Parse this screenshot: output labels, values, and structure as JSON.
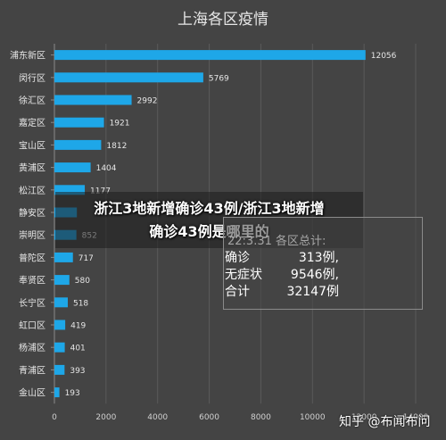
{
  "chart_data": {
    "type": "bar",
    "orientation": "horizontal",
    "title": "上海各区疫情",
    "categories": [
      "浦东新区",
      "闵行区",
      "徐汇区",
      "嘉定区",
      "宝山区",
      "黄浦区",
      "松江区",
      "静安区",
      "崇明区",
      "普陀区",
      "奉贤区",
      "长宁区",
      "虹口区",
      "杨浦区",
      "青浦区",
      "金山区"
    ],
    "values": [
      12056,
      5769,
      2992,
      1921,
      1812,
      1404,
      1177,
      870,
      852,
      717,
      580,
      518,
      419,
      401,
      393,
      193
    ],
    "value_labels": [
      "12056",
      "5769",
      "2992",
      "1921",
      "1812",
      "1404",
      "1177",
      "",
      "852",
      "717",
      "580",
      "518",
      "419",
      "401",
      "393",
      "193"
    ],
    "xticks": [
      "0",
      "2000",
      "4000",
      "6000",
      "8000",
      "10000",
      "12000",
      "14000"
    ],
    "xlim": [
      0,
      14000
    ],
    "grid": true,
    "legend": "none",
    "colors": {
      "bar": "#1ea7e8",
      "background": "#444444",
      "grid": "#5a5a5a",
      "text": "#e0e0e0"
    }
  },
  "overlay": {
    "caption_line1": "浙江3地新增确诊43例/浙江3地新增",
    "caption_line2": "确诊43例是哪里的"
  },
  "note": {
    "header": "22:3.31 各区总计:",
    "rows": [
      {
        "label": "确诊",
        "value": "313例,"
      },
      {
        "label": "无症状",
        "value": "9546例,"
      },
      {
        "label": "合计",
        "value": "32147例"
      }
    ]
  },
  "watermark": "知乎 @布闻布问"
}
